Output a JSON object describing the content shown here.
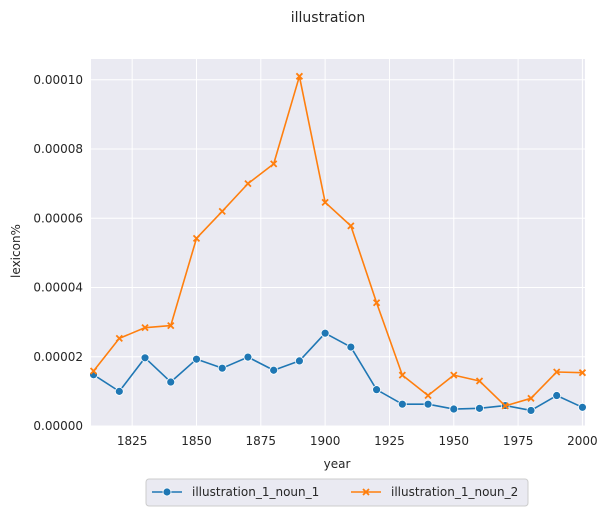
{
  "chart_data": {
    "type": "line",
    "title": "illustration",
    "xlabel": "year",
    "ylabel": "lexicon%",
    "xlim": [
      1809,
      2001
    ],
    "ylim": [
      0,
      0.000106
    ],
    "xticks": [
      1825,
      1850,
      1875,
      1900,
      1925,
      1950,
      1975,
      2000
    ],
    "yticks": [
      0,
      2e-05,
      4e-05,
      6e-05,
      8e-05,
      0.0001
    ],
    "ytick_labels": [
      "0.00000",
      "0.00002",
      "0.00004",
      "0.00006",
      "0.00008",
      "0.00010"
    ],
    "grid": true,
    "legend_position": "bottom-center",
    "x": [
      1810,
      1820,
      1830,
      1840,
      1850,
      1860,
      1870,
      1880,
      1890,
      1900,
      1910,
      1920,
      1930,
      1940,
      1950,
      1960,
      1970,
      1980,
      1990,
      2000
    ],
    "series": [
      {
        "name": "illustration_1_noun_1",
        "color": "#1f77b4",
        "marker": "circle",
        "values": [
          1.48e-05,
          1e-05,
          1.97e-05,
          1.27e-05,
          1.93e-05,
          1.67e-05,
          1.99e-05,
          1.61e-05,
          1.88e-05,
          2.68e-05,
          2.28e-05,
          1.05e-05,
          6.3e-06,
          6.3e-06,
          4.9e-06,
          5.1e-06,
          5.9e-06,
          4.5e-06,
          8.8e-06,
          5.4e-06
        ]
      },
      {
        "name": "illustration_1_noun_2",
        "color": "#ff7f0e",
        "marker": "x",
        "values": [
          1.59e-05,
          2.53e-05,
          2.84e-05,
          2.9e-05,
          5.42e-05,
          6.2e-05,
          7e-05,
          7.57e-05,
          0.000101,
          6.46e-05,
          5.78e-05,
          3.56e-05,
          1.47e-05,
          8.8e-06,
          1.47e-05,
          1.3e-05,
          5.8e-06,
          8e-06,
          1.56e-05,
          1.54e-05
        ]
      }
    ]
  }
}
